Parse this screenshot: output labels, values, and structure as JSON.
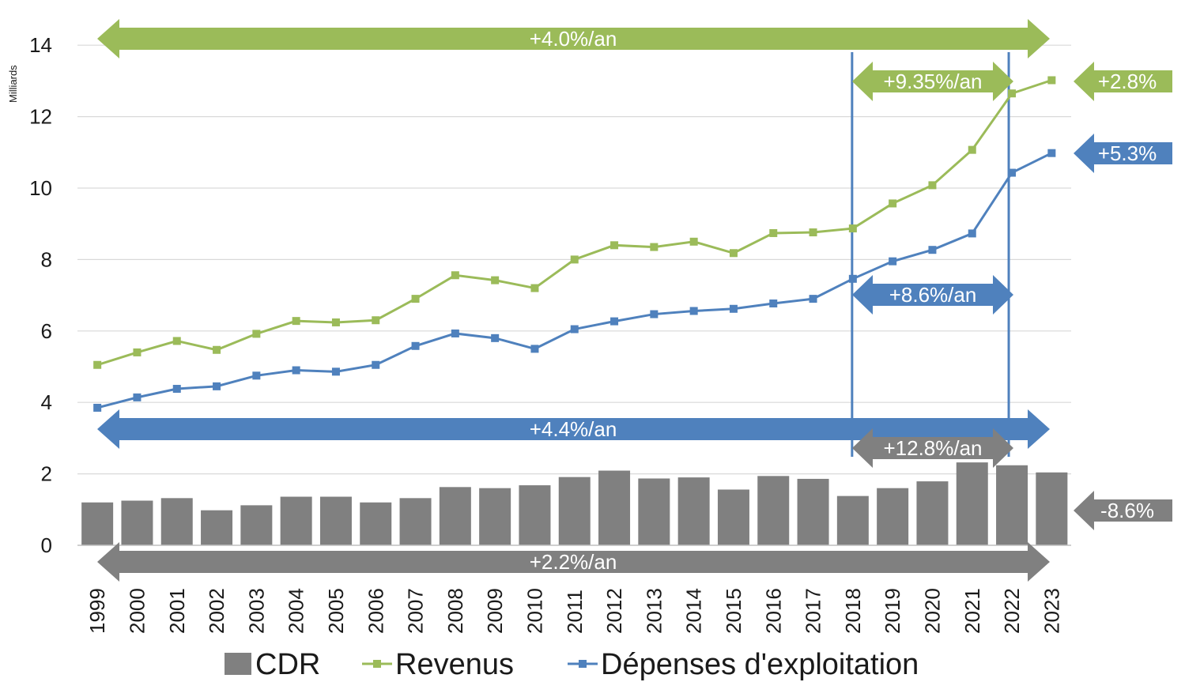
{
  "chart_data": {
    "type": "bar",
    "y_unit_label": "Milliards",
    "ylim": [
      0,
      14
    ],
    "yticks": [
      "0",
      "2",
      "4",
      "6",
      "8",
      "10",
      "12",
      "14"
    ],
    "categories": [
      "1999",
      "2000",
      "2001",
      "2002",
      "2003",
      "2004",
      "2005",
      "2006",
      "2007",
      "2008",
      "2009",
      "2010",
      "2011",
      "2012",
      "2013",
      "2014",
      "2015",
      "2016",
      "2017",
      "2018",
      "2019",
      "2020",
      "2021",
      "2022",
      "2023"
    ],
    "grid": true,
    "legend_position": "bottom",
    "series": [
      {
        "name": "CDR",
        "type": "bar",
        "color": "#808080",
        "values": [
          1.2,
          1.25,
          1.32,
          0.98,
          1.12,
          1.36,
          1.36,
          1.2,
          1.32,
          1.63,
          1.6,
          1.68,
          1.91,
          2.09,
          1.87,
          1.9,
          1.56,
          1.94,
          1.86,
          1.38,
          1.6,
          1.79,
          2.32,
          2.24,
          2.04
        ]
      },
      {
        "name": "Revenus",
        "type": "line",
        "color": "#9BBB59",
        "values": [
          5.05,
          5.4,
          5.72,
          5.47,
          5.92,
          6.28,
          6.24,
          6.3,
          6.9,
          7.56,
          7.42,
          7.2,
          8.0,
          8.4,
          8.35,
          8.5,
          8.18,
          8.74,
          8.76,
          8.87,
          9.57,
          10.08,
          11.07,
          12.65,
          13.02
        ]
      },
      {
        "name": "Dépenses d'exploitation",
        "type": "line",
        "color": "#4F81BD",
        "values": [
          3.85,
          4.14,
          4.38,
          4.45,
          4.75,
          4.9,
          4.86,
          5.05,
          5.58,
          5.93,
          5.8,
          5.5,
          6.05,
          6.27,
          6.47,
          6.56,
          6.62,
          6.77,
          6.9,
          7.46,
          7.95,
          8.27,
          8.73,
          10.43,
          10.98
        ]
      }
    ],
    "annotations": [
      {
        "label": "+4.0%/an",
        "color": "#9BBB59"
      },
      {
        "label": "+9.35%/an",
        "color": "#9BBB59"
      },
      {
        "label": "+2.8%",
        "color": "#9BBB59"
      },
      {
        "label": "+5.3%",
        "color": "#4F81BD"
      },
      {
        "label": "+8.6%/an",
        "color": "#4F81BD"
      },
      {
        "label": "+4.4%/an",
        "color": "#4F81BD"
      },
      {
        "label": "+12.8%/an",
        "color": "#808080"
      },
      {
        "label": "-8.6%",
        "color": "#808080"
      },
      {
        "label": "+2.2%/an",
        "color": "#808080"
      }
    ]
  }
}
